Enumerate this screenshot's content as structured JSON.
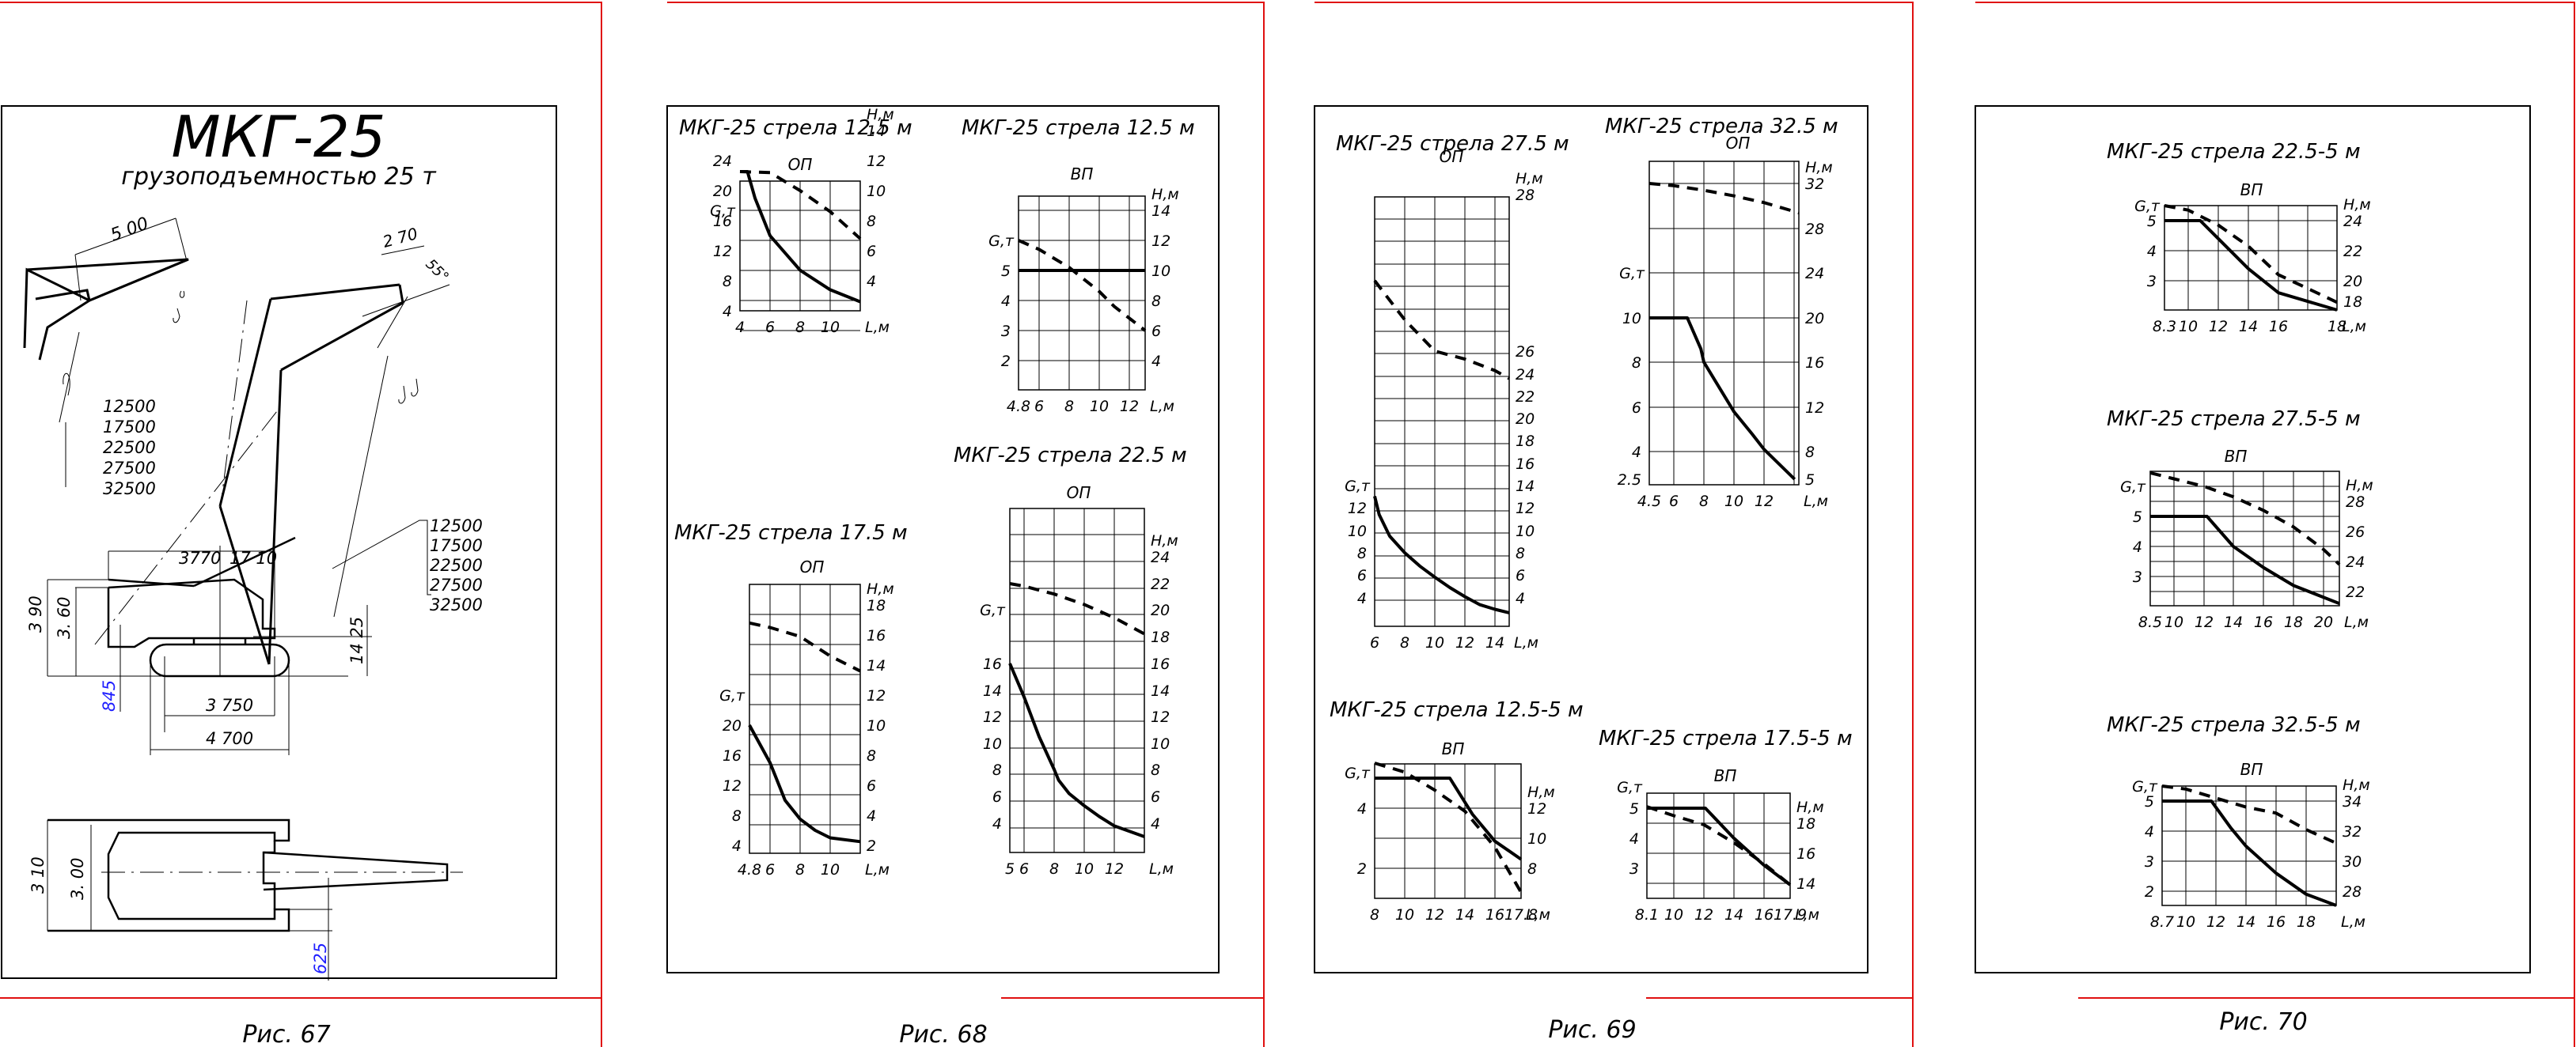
{
  "pages": [
    {
      "caption": "Рис. 67",
      "title": "МКГ-25",
      "subtitle": "грузоподъемностью 25 т",
      "dims": {
        "boom_tip_len": "5 00",
        "boom_tip_len2": "2 70",
        "angle": "55°",
        "boom_lengths_left": [
          "12500",
          "17500",
          "22500",
          "27500",
          "32500"
        ],
        "boom_lengths_right": [
          "12500",
          "17500",
          "22500",
          "27500",
          "32500"
        ],
        "d3770": "3770",
        "d1710": "17 10",
        "h390": "3 90",
        "h360": "3. 60",
        "d845": "845",
        "d1425": "14 25",
        "d3750": "3 750",
        "d4700": "4 700",
        "w310": "3 10",
        "w300": "3. 00",
        "d625": "625"
      },
      "colors": {
        "dim_blue": "#1f1fff",
        "frame": "#000000",
        "page_edge": "#e01010"
      }
    },
    {
      "caption": "Рис. 68"
    },
    {
      "caption": "Рис. 69"
    },
    {
      "caption": "Рис. 70"
    }
  ],
  "chart_data": [
    {
      "id": "c1",
      "type": "line",
      "page": 2,
      "title": "МКГ-25 стрела 12.5 м",
      "mode": "ОП",
      "xlabel": "L,м",
      "ylabel_left": "G,т",
      "ylabel_right": "H,м",
      "x_ticks": [
        "4",
        "6",
        "8",
        "10"
      ],
      "xlim": [
        4,
        12
      ],
      "y_left_ticks": [
        "4",
        "8",
        "12",
        "16",
        "20",
        "24"
      ],
      "ylim_left": [
        4,
        32
      ],
      "y_right_ticks": [
        "4",
        "6",
        "8",
        "10",
        "12",
        "14"
      ],
      "ylim_right": [
        2,
        16
      ],
      "series": [
        {
          "name": "G",
          "axis": "left",
          "style": "solid",
          "x": [
            4,
            4.4,
            4.5,
            5,
            6,
            8,
            10,
            12
          ],
          "y": [
            25,
            25,
            24,
            19,
            14,
            9.4,
            6.8,
            5.2
          ]
        },
        {
          "name": "H",
          "axis": "right",
          "style": "dashed",
          "x": [
            4,
            6,
            8,
            10,
            12
          ],
          "y": [
            12,
            11.2,
            10,
            8.6,
            6.8
          ]
        }
      ]
    },
    {
      "id": "c2",
      "type": "line",
      "page": 2,
      "title": "МКГ-25 стрела 12.5 м",
      "mode": "ВП",
      "xlabel": "L,м",
      "ylabel_left": "G,т",
      "ylabel_right": "H,м",
      "x_ticks": [
        "4.8",
        "6",
        "8",
        "10",
        "12"
      ],
      "xlim": [
        4.8,
        12.2
      ],
      "y_left_ticks": [
        "2",
        "3",
        "4",
        "5"
      ],
      "ylim_left": [
        1,
        7
      ],
      "y_right_ticks": [
        "4",
        "6",
        "8",
        "10",
        "12",
        "14"
      ],
      "ylim_right": [
        2,
        14.8
      ],
      "series": [
        {
          "name": "G",
          "axis": "left",
          "style": "solid",
          "x": [
            4.8,
            12.2
          ],
          "y": [
            5,
            5
          ]
        },
        {
          "name": "H",
          "axis": "right",
          "style": "dashed",
          "x": [
            4.8,
            6,
            8,
            10,
            11,
            12.2
          ],
          "y": [
            12,
            11.4,
            10.2,
            8.6,
            7.6,
            6
          ]
        }
      ]
    },
    {
      "id": "c3",
      "type": "line",
      "page": 2,
      "title": "МКГ-25 стрела 17.5 м",
      "mode": "ОП",
      "xlabel": "L,м",
      "ylabel_left": "G,т",
      "ylabel_right": "H,м",
      "x_ticks": [
        "4.8",
        "6",
        "8",
        "10"
      ],
      "xlim": [
        4.8,
        11.2
      ],
      "y_left_ticks": [
        "4",
        "8",
        "12",
        "16",
        "20"
      ],
      "ylim_left": [
        4,
        40
      ],
      "y_right_ticks": [
        "2",
        "4",
        "6",
        "8",
        "10",
        "12",
        "14",
        "16",
        "18"
      ],
      "ylim_right": [
        2,
        20
      ],
      "series": [
        {
          "name": "G",
          "axis": "left",
          "style": "solid",
          "x": [
            4.8,
            6,
            7,
            8,
            9,
            10,
            11.2
          ],
          "y": [
            20,
            15,
            10,
            7.5,
            6,
            5,
            4.5
          ]
        },
        {
          "name": "H",
          "axis": "right",
          "style": "dashed",
          "x": [
            4.8,
            6,
            8,
            10,
            11.2
          ],
          "y": [
            16.8,
            16.5,
            15.9,
            14.6,
            13.6
          ]
        }
      ]
    },
    {
      "id": "c4",
      "type": "line",
      "page": 2,
      "title": "МКГ-25 стрела 22.5 м",
      "mode": "ОП",
      "xlabel": "L,м",
      "ylabel_left": "G,т",
      "ylabel_right": "H,м",
      "x_ticks": [
        "5",
        "6",
        "8",
        "10",
        "12"
      ],
      "xlim": [
        5,
        13.5
      ],
      "y_left_ticks": [
        "4",
        "6",
        "8",
        "10",
        "12",
        "14",
        "16"
      ],
      "ylim_left": [
        3,
        26
      ],
      "y_right_ticks": [
        "4",
        "6",
        "8",
        "10",
        "12",
        "14",
        "16",
        "18",
        "20",
        "22",
        "24"
      ],
      "ylim_right": [
        3,
        26
      ],
      "series": [
        {
          "name": "G",
          "axis": "left",
          "style": "solid",
          "x": [
            5,
            6,
            7,
            8,
            8.3,
            9,
            10,
            11,
            12,
            13.5
          ],
          "y": [
            16,
            13.5,
            10.5,
            8,
            7.2,
            6.2,
            5.3,
            4.5,
            3.8,
            3
          ]
        },
        {
          "name": "H",
          "axis": "right",
          "style": "dashed",
          "x": [
            5,
            6,
            8,
            10,
            12,
            13.5
          ],
          "y": [
            22,
            21.8,
            21.2,
            20.4,
            19.4,
            18.2
          ]
        }
      ]
    },
    {
      "id": "c5",
      "type": "line",
      "page": 3,
      "title": "МКГ-25 стрела 27.5 м",
      "mode": "ОП",
      "xlabel": "L,м",
      "ylabel_left": "G,т",
      "ylabel_right": "H,м",
      "x_ticks": [
        "6",
        "8",
        "10",
        "12",
        "14"
      ],
      "xlim": [
        6,
        15
      ],
      "y_left_ticks": [
        "4",
        "6",
        "8",
        "10",
        "12"
      ],
      "ylim_left": [
        2,
        30
      ],
      "y_right_ticks": [
        "4",
        "6",
        "8",
        "10",
        "12",
        "14",
        "16",
        "18",
        "20",
        "22",
        "24",
        "26",
        "28"
      ],
      "ylim_right": [
        2,
        30
      ],
      "series": [
        {
          "name": "G",
          "axis": "left",
          "style": "solid",
          "x": [
            6,
            6.3,
            7,
            8,
            9,
            10,
            11,
            12,
            13,
            14,
            15
          ],
          "y": [
            13,
            11.4,
            9.5,
            8,
            6.8,
            5.8,
            4.9,
            4.1,
            3.4,
            3,
            2.7
          ]
        },
        {
          "name": "H",
          "axis": "right",
          "style": "dashed",
          "x": [
            6,
            8,
            10,
            12,
            14,
            15
          ],
          "y": [
            26.9,
            26.4,
            26,
            25.3,
            24.3,
            23.6
          ]
        }
      ]
    },
    {
      "id": "c6",
      "type": "line",
      "page": 3,
      "title": "МКГ-25 стрела 32.5 м",
      "mode": "ОП",
      "xlabel": "L,м",
      "ylabel_left": "G,т",
      "ylabel_right": "H,м",
      "x_ticks": [
        "4.5",
        "6",
        "8",
        "10",
        "12"
      ],
      "xlim": [
        4.5,
        14.5
      ],
      "y_left_ticks": [
        "2.5",
        "4",
        "6",
        "8",
        "10"
      ],
      "ylim_left": [
        2.5,
        16.8
      ],
      "y_right_ticks": [
        "5",
        "8",
        "12",
        "16",
        "20",
        "24",
        "28",
        "32"
      ],
      "ylim_right": [
        5,
        33.6
      ],
      "series": [
        {
          "name": "G",
          "axis": "left",
          "style": "solid",
          "x": [
            4.5,
            6.9,
            7.8,
            8,
            9,
            10,
            11.2,
            12,
            14.2
          ],
          "y": [
            10,
            10,
            8.6,
            8,
            6.9,
            5.8,
            4.8,
            4.1,
            2.5
          ]
        },
        {
          "name": "H",
          "axis": "right",
          "style": "dashed",
          "x": [
            4.5,
            6,
            8,
            10,
            12,
            14.5
          ],
          "y": [
            32,
            31.8,
            31.4,
            30.9,
            30.3,
            29.4
          ]
        }
      ]
    },
    {
      "id": "c7",
      "type": "line",
      "page": 3,
      "title": "МКГ-25 стрела 12.5-5 м",
      "mode": "ВП",
      "xlabel": "L,м",
      "ylabel_left": "G,т",
      "ylabel_right": "H,м",
      "x_ticks": [
        "8",
        "10",
        "12",
        "14",
        "16",
        "17.8"
      ],
      "xlim": [
        8,
        17.8
      ],
      "y_left_ticks": [
        "2",
        "4"
      ],
      "ylim_left": [
        1,
        5.5
      ],
      "y_right_ticks": [
        "8",
        "10",
        "12"
      ],
      "ylim_right": [
        6,
        15
      ],
      "series": [
        {
          "name": "G",
          "axis": "left",
          "style": "solid",
          "x": [
            8,
            13,
            14.5,
            16,
            17.8
          ],
          "y": [
            5,
            5,
            3.8,
            2.9,
            2.3
          ]
        },
        {
          "name": "H",
          "axis": "right",
          "style": "dashed",
          "x": [
            8,
            10,
            12,
            14,
            16,
            17.8
          ],
          "y": [
            15,
            14.4,
            13.2,
            11.8,
            9.4,
            6.4
          ]
        }
      ]
    },
    {
      "id": "c8",
      "type": "line",
      "page": 3,
      "title": "МКГ-25 стрела 17.5-5 м",
      "mode": "ВП",
      "xlabel": "L,м",
      "ylabel_left": "G,т",
      "ylabel_right": "H,м",
      "x_ticks": [
        "8.1",
        "10",
        "12",
        "14",
        "16",
        "17.9"
      ],
      "xlim": [
        8.1,
        17.9
      ],
      "y_left_ticks": [
        "3",
        "4",
        "5"
      ],
      "ylim_left": [
        2,
        5.5
      ],
      "y_right_ticks": [
        "14",
        "16",
        "18"
      ],
      "ylim_right": [
        13,
        19
      ],
      "series": [
        {
          "name": "G",
          "axis": "left",
          "style": "solid",
          "x": [
            8.1,
            12.1,
            14,
            16,
            17.9
          ],
          "y": [
            5,
            5,
            4,
            3.1,
            2.45
          ]
        },
        {
          "name": "H",
          "axis": "right",
          "style": "dashed",
          "x": [
            8.1,
            10,
            12,
            14,
            16,
            17.9
          ],
          "y": [
            19.1,
            18.5,
            17.9,
            16.7,
            15.3,
            13.9
          ]
        }
      ]
    },
    {
      "id": "c9",
      "type": "line",
      "page": 4,
      "title": "МКГ-25 стрела 22.5-5 м",
      "mode": "ВП",
      "xlabel": "L,м",
      "ylabel_left": "G,т",
      "ylabel_right": "H,м",
      "x_ticks": [
        "8.3",
        "10",
        "12",
        "14",
        "16",
        "18"
      ],
      "xlim": [
        8.3,
        18
      ],
      "y_left_ticks": [
        "3",
        "4",
        "5"
      ],
      "ylim_left": [
        1.8,
        5.5
      ],
      "y_right_ticks": [
        "18",
        "20",
        "22",
        "24"
      ],
      "ylim_right": [
        17.4,
        25
      ],
      "series": [
        {
          "name": "G",
          "axis": "left",
          "style": "solid",
          "x": [
            8.3,
            10.8,
            12,
            14,
            16,
            18
          ],
          "y": [
            5,
            5,
            4.4,
            3.4,
            2.6,
            1.8
          ]
        },
        {
          "name": "H",
          "axis": "right",
          "style": "dashed",
          "x": [
            8.3,
            10,
            12,
            14,
            16,
            18
          ],
          "y": [
            25,
            24.7,
            23.7,
            22.3,
            20.4,
            17.9
          ]
        }
      ]
    },
    {
      "id": "c10",
      "type": "line",
      "page": 4,
      "title": "МКГ-25 стрела 27.5-5 м",
      "mode": "ВП",
      "xlabel": "L,м",
      "ylabel_left": "G,т",
      "ylabel_right": "H,м",
      "x_ticks": [
        "8.5",
        "10",
        "12",
        "14",
        "16",
        "18",
        "20"
      ],
      "xlim": [
        8.5,
        21
      ],
      "y_left_ticks": [
        "3",
        "4",
        "5"
      ],
      "ylim_left": [
        1.8,
        6
      ],
      "y_right_ticks": [
        "22",
        "24",
        "26",
        "28"
      ],
      "ylim_right": [
        21,
        30
      ],
      "series": [
        {
          "name": "G",
          "axis": "left",
          "style": "solid",
          "x": [
            8.5,
            12.2,
            14,
            16,
            18,
            21
          ],
          "y": [
            5,
            5,
            4,
            3.3,
            2.7,
            2.1
          ]
        },
        {
          "name": "H",
          "axis": "right",
          "style": "dashed",
          "x": [
            8.5,
            10,
            12,
            14,
            16,
            18,
            20,
            21
          ],
          "y": [
            29.9,
            29.5,
            29,
            28.3,
            27.4,
            26.3,
            24.8,
            23.8
          ]
        }
      ]
    },
    {
      "id": "c11",
      "type": "line",
      "page": 4,
      "title": "МКГ-25 стрела 32.5-5 м",
      "mode": "ВП",
      "xlabel": "L,м",
      "ylabel_left": "G,т",
      "ylabel_right": "H,м",
      "x_ticks": [
        "8.7",
        "10",
        "12",
        "14",
        "16",
        "18"
      ],
      "xlim": [
        8.7,
        19
      ],
      "y_left_ticks": [
        "2",
        "3",
        "4",
        "5"
      ],
      "ylim_left": [
        1.5,
        5.5
      ],
      "y_right_ticks": [
        "28",
        "30",
        "32",
        "34"
      ],
      "ylim_right": [
        27,
        35
      ],
      "series": [
        {
          "name": "G",
          "axis": "left",
          "style": "solid",
          "x": [
            8.7,
            11.7,
            13,
            14,
            16,
            18,
            19
          ],
          "y": [
            5,
            5,
            4.1,
            3.5,
            2.6,
            1.9,
            1.5
          ]
        },
        {
          "name": "H",
          "axis": "right",
          "style": "dashed",
          "x": [
            8.7,
            10,
            12,
            14,
            16,
            18,
            19
          ],
          "y": [
            35,
            34.8,
            34.2,
            33.6,
            33.2,
            32.1,
            31.2
          ]
        }
      ]
    }
  ]
}
